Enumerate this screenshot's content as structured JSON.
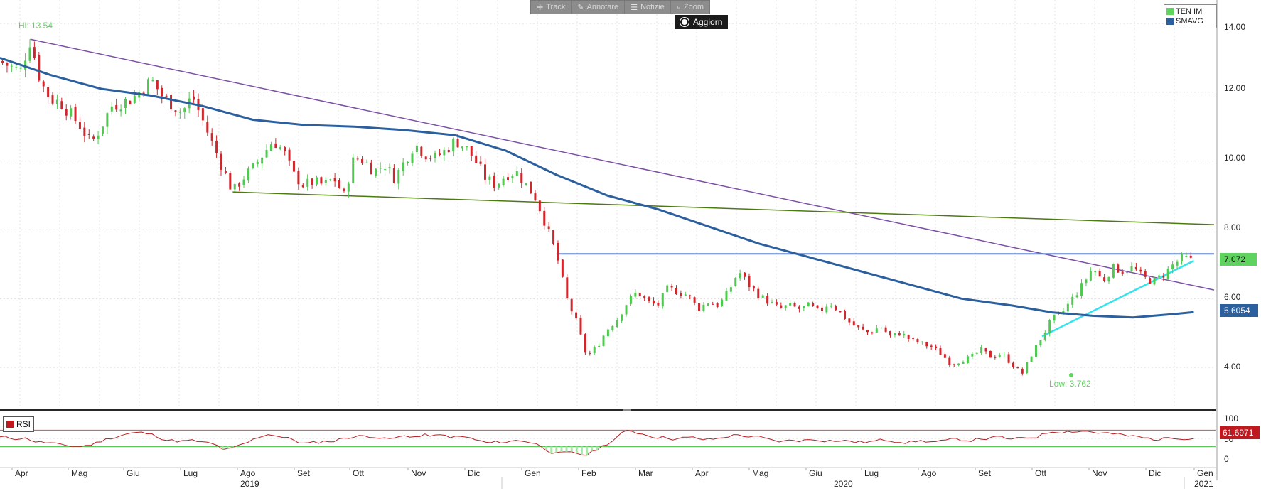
{
  "toolbar": {
    "track_label": "Track",
    "annotate_label": "Annotare",
    "news_label": "Notizie",
    "zoom_label": "Zoom",
    "refresh_label": "Aggiorn"
  },
  "legend": {
    "items": [
      {
        "label": "TEN IM",
        "color": "#5ed35e"
      },
      {
        "label": "SMAVG",
        "color": "#2b5f9e"
      }
    ]
  },
  "rsi_label": "RSI",
  "chart_data": {
    "type": "candlestick",
    "price_axis": {
      "ticks": [
        "14.00",
        "12.00",
        "10.00",
        "8.00",
        "6.00",
        "4.00"
      ],
      "ylim": [
        2.6,
        14.6
      ]
    },
    "rsi_axis": {
      "ticks": [
        "100",
        "50",
        "0"
      ],
      "upper_band": 70,
      "lower_band": 30
    },
    "x_labels": [
      "Apr",
      "Mag",
      "Giu",
      "Lug",
      "Ago",
      "Set",
      "Ott",
      "Nov",
      "Dic",
      "Gen",
      "Feb",
      "Mar",
      "Apr",
      "Mag",
      "Giu",
      "Lug",
      "Ago",
      "Set",
      "Ott",
      "Nov",
      "Dic",
      "Gen"
    ],
    "year_labels": [
      "2019",
      "2020",
      "2021"
    ],
    "annotations": {
      "high": "Hi: 13.54",
      "low": "Low: 3.762"
    },
    "last_price": "7.072",
    "last_sma": "5.6054",
    "last_rsi": "61.6971",
    "price_path": [
      [
        0,
        12.9
      ],
      [
        2,
        12.6
      ],
      [
        3,
        13.54
      ],
      [
        4,
        12.3
      ],
      [
        5,
        11.8
      ],
      [
        6,
        11.7
      ],
      [
        8,
        11.0
      ],
      [
        9,
        10.5
      ],
      [
        10,
        11.0
      ],
      [
        11,
        11.6
      ],
      [
        13,
        11.8
      ],
      [
        15,
        12.35
      ],
      [
        16,
        11.9
      ],
      [
        18,
        11.4
      ],
      [
        19,
        11.9
      ],
      [
        20,
        11.2
      ],
      [
        21,
        10.5
      ],
      [
        22,
        9.8
      ],
      [
        23,
        9.1
      ],
      [
        24,
        9.5
      ],
      [
        25,
        9.8
      ],
      [
        26,
        10.2
      ],
      [
        27,
        10.6
      ],
      [
        28,
        10.3
      ],
      [
        29,
        9.6
      ],
      [
        30,
        9.3
      ],
      [
        31,
        9.4
      ],
      [
        32,
        9.3
      ],
      [
        33,
        9.5
      ],
      [
        34,
        9.0
      ],
      [
        35,
        10.1
      ],
      [
        36,
        10.0
      ],
      [
        37,
        9.7
      ],
      [
        38,
        9.9
      ],
      [
        39,
        9.5
      ],
      [
        40,
        10.0
      ],
      [
        41,
        10.5
      ],
      [
        42,
        10.2
      ],
      [
        43,
        10.1
      ],
      [
        44,
        10.3
      ],
      [
        45,
        10.6
      ],
      [
        46,
        10.4
      ],
      [
        47,
        10.0
      ],
      [
        48,
        9.5
      ],
      [
        49,
        9.3
      ],
      [
        50,
        9.6
      ],
      [
        51,
        9.7
      ],
      [
        52,
        9.3
      ],
      [
        53,
        8.9
      ],
      [
        54,
        8.1
      ],
      [
        55,
        7.3
      ],
      [
        56,
        6.0
      ],
      [
        57,
        5.3
      ],
      [
        58,
        4.3
      ],
      [
        59,
        4.6
      ],
      [
        60,
        5.1
      ],
      [
        61,
        5.4
      ],
      [
        62,
        5.9
      ],
      [
        63,
        6.2
      ],
      [
        64,
        5.9
      ],
      [
        65,
        5.8
      ],
      [
        66,
        6.3
      ],
      [
        67,
        6.2
      ],
      [
        68,
        6.1
      ],
      [
        69,
        5.7
      ],
      [
        70,
        5.9
      ],
      [
        71,
        5.8
      ],
      [
        72,
        6.2
      ],
      [
        73,
        6.8
      ],
      [
        74,
        6.4
      ],
      [
        75,
        6.1
      ],
      [
        76,
        5.9
      ],
      [
        77,
        5.7
      ],
      [
        78,
        5.8
      ],
      [
        79,
        5.7
      ],
      [
        80,
        5.8
      ],
      [
        81,
        5.6
      ],
      [
        82,
        5.9
      ],
      [
        83,
        5.6
      ],
      [
        84,
        5.3
      ],
      [
        85,
        5.1
      ],
      [
        86,
        5.0
      ],
      [
        87,
        5.2
      ],
      [
        88,
        4.9
      ],
      [
        89,
        5.0
      ],
      [
        90,
        4.8
      ],
      [
        91,
        4.7
      ],
      [
        92,
        4.6
      ],
      [
        93,
        4.4
      ],
      [
        94,
        4.1
      ],
      [
        95,
        4.2
      ],
      [
        96,
        4.3
      ],
      [
        97,
        4.5
      ],
      [
        98,
        4.3
      ],
      [
        99,
        4.4
      ],
      [
        100,
        4.1
      ],
      [
        101,
        3.8
      ],
      [
        102,
        4.4
      ],
      [
        103,
        4.9
      ],
      [
        104,
        5.4
      ],
      [
        105,
        5.6
      ],
      [
        106,
        6.0
      ],
      [
        107,
        6.4
      ],
      [
        108,
        6.9
      ],
      [
        109,
        6.5
      ],
      [
        110,
        6.9
      ],
      [
        111,
        6.8
      ],
      [
        112,
        6.9
      ],
      [
        113,
        6.6
      ],
      [
        114,
        6.5
      ],
      [
        115,
        6.7
      ],
      [
        116,
        7.0
      ],
      [
        117,
        7.2
      ],
      [
        118,
        7.07
      ]
    ],
    "sma_path": [
      [
        0,
        13.0
      ],
      [
        5,
        12.5
      ],
      [
        10,
        12.1
      ],
      [
        15,
        11.9
      ],
      [
        20,
        11.6
      ],
      [
        25,
        11.2
      ],
      [
        30,
        11.05
      ],
      [
        35,
        11.0
      ],
      [
        40,
        10.9
      ],
      [
        45,
        10.75
      ],
      [
        50,
        10.3
      ],
      [
        55,
        9.6
      ],
      [
        60,
        9.0
      ],
      [
        65,
        8.6
      ],
      [
        70,
        8.1
      ],
      [
        75,
        7.6
      ],
      [
        80,
        7.2
      ],
      [
        85,
        6.8
      ],
      [
        90,
        6.4
      ],
      [
        95,
        6.0
      ],
      [
        100,
        5.8
      ],
      [
        104,
        5.6
      ],
      [
        108,
        5.5
      ],
      [
        112,
        5.45
      ],
      [
        116,
        5.55
      ],
      [
        118,
        5.6054
      ]
    ],
    "trendlines": [
      {
        "name": "purple",
        "color": "#7b4fa6",
        "from": [
          3,
          13.54
        ],
        "to": [
          120,
          6.25
        ]
      },
      {
        "name": "green",
        "color": "#4d7a10",
        "from": [
          23,
          9.1
        ],
        "to": [
          120,
          8.15
        ]
      },
      {
        "name": "blue-hline",
        "color": "#5b84d6",
        "from": [
          55,
          7.3
        ],
        "to": [
          120,
          7.3
        ]
      },
      {
        "name": "cyan",
        "color": "#33e3ee",
        "from": [
          103,
          4.9
        ],
        "to": [
          118,
          7.1
        ]
      }
    ]
  }
}
